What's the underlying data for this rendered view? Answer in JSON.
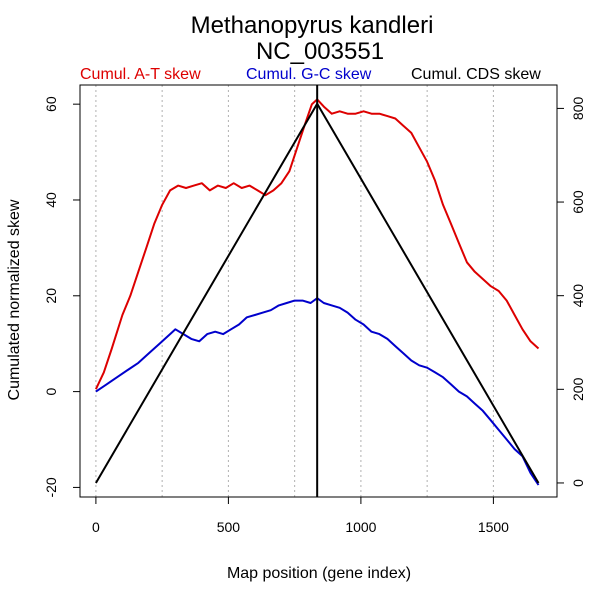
{
  "chart_data": {
    "type": "line",
    "title": "Methanopyrus kandleri",
    "subtitle": "NC_003551",
    "xlabel": "Map position (gene index)",
    "ylabel": "Cumulated normalized skew",
    "xlim": [
      -60,
      1740
    ],
    "ylim": [
      -22,
      64
    ],
    "y2lim": [
      -30,
      850
    ],
    "x_ticks": [
      0,
      500,
      1000,
      1500
    ],
    "x_tick_labels": [
      "0",
      "500",
      "1000",
      "1500"
    ],
    "y_ticks": [
      -20,
      0,
      20,
      40,
      60
    ],
    "y_tick_labels": [
      "-20",
      "0",
      "20",
      "40",
      "60"
    ],
    "y2_ticks": [
      0,
      200,
      400,
      600,
      800
    ],
    "y2_tick_labels": [
      "0",
      "200",
      "400",
      "600",
      "800"
    ],
    "grid_x": [
      0,
      250,
      500,
      750,
      1000,
      1250,
      1500
    ],
    "grid_x_extra": [
      750,
      1250,
      1000
    ],
    "vertical_marker_x": 835,
    "legend_placement": "top",
    "series": [
      {
        "name": "Cumul. A-T skew",
        "color": "#dd0000",
        "axis": "left",
        "x": [
          0,
          30,
          60,
          100,
          130,
          160,
          190,
          220,
          250,
          280,
          310,
          340,
          370,
          400,
          430,
          460,
          490,
          520,
          550,
          580,
          610,
          640,
          670,
          700,
          730,
          760,
          790,
          815,
          835,
          860,
          890,
          920,
          950,
          980,
          1010,
          1040,
          1070,
          1100,
          1130,
          1160,
          1190,
          1220,
          1250,
          1280,
          1310,
          1340,
          1370,
          1400,
          1430,
          1460,
          1490,
          1520,
          1550,
          1580,
          1610,
          1640,
          1670
        ],
        "y": [
          0.5,
          4,
          9,
          16,
          20,
          25,
          30,
          35,
          39,
          42,
          43,
          42.5,
          43,
          43.5,
          42,
          43,
          42.5,
          43.5,
          42.5,
          43,
          42,
          41,
          42,
          43.5,
          46,
          51,
          56,
          60,
          61,
          59.5,
          58,
          58.5,
          58,
          58,
          58.5,
          58,
          58,
          57.5,
          57,
          55.5,
          54,
          51,
          48,
          44,
          39,
          35,
          31,
          27,
          25,
          23.5,
          22,
          21,
          19,
          16,
          13,
          10.5,
          9
        ]
      },
      {
        "name": "Cumul. G-C skew",
        "color": "#0000cc",
        "axis": "left",
        "x": [
          0,
          40,
          80,
          120,
          160,
          200,
          240,
          280,
          300,
          330,
          360,
          390,
          420,
          450,
          480,
          510,
          540,
          570,
          600,
          630,
          660,
          690,
          720,
          750,
          780,
          810,
          835,
          860,
          890,
          920,
          950,
          980,
          1010,
          1040,
          1070,
          1100,
          1130,
          1160,
          1190,
          1220,
          1250,
          1280,
          1310,
          1340,
          1370,
          1400,
          1430,
          1460,
          1490,
          1520,
          1550,
          1580,
          1610,
          1640,
          1670
        ],
        "y": [
          0,
          1.5,
          3,
          4.5,
          6,
          8,
          10,
          12,
          13,
          12,
          11,
          10.5,
          12,
          12.5,
          12,
          13,
          14,
          15.5,
          16,
          16.5,
          17,
          18,
          18.5,
          19,
          19,
          18.5,
          19.5,
          18.5,
          18,
          17.5,
          16.5,
          15,
          14,
          12.5,
          12,
          11,
          9.5,
          8,
          6.5,
          5.5,
          5,
          4,
          3,
          1.5,
          0,
          -1,
          -2.5,
          -4,
          -6,
          -8,
          -10,
          -12,
          -13.5,
          -17,
          -19.5
        ]
      },
      {
        "name": "Cumul. CDS skew",
        "color": "#000000",
        "axis": "right",
        "x": [
          0,
          835,
          1670
        ],
        "y": [
          0,
          810,
          0
        ]
      }
    ]
  }
}
